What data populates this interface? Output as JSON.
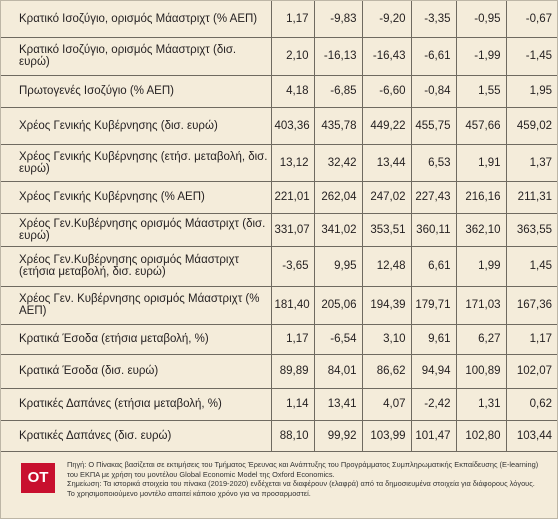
{
  "table": {
    "rows": [
      [
        "Κρατικό Ισοζύγιο, ορισμός Μάαστριχτ (% ΑΕΠ)",
        "1,17",
        "-9,83",
        "-9,20",
        "-3,35",
        "-0,95",
        "-0,67"
      ],
      [
        "Κρατικό Ισοζύγιο, ορισμός Μάαστριχτ (δισ. ευρώ)",
        "2,10",
        "-16,13",
        "-16,43",
        "-6,61",
        "-1,99",
        "-1,45"
      ],
      [
        "Πρωτογενές Ισοζύγιο (% ΑΕΠ)",
        "4,18",
        "-6,85",
        "-6,60",
        "-0,84",
        "1,55",
        "1,95"
      ],
      [
        "Χρέος Γενικής Κυβέρνησης (δισ. ευρώ)",
        "403,36",
        "435,78",
        "449,22",
        "455,75",
        "457,66",
        "459,02"
      ],
      [
        "Χρέος Γενικής Κυβέρνησης (ετήσ. μεταβολή, δισ. ευρώ)",
        "13,12",
        "32,42",
        "13,44",
        "6,53",
        "1,91",
        "1,37"
      ],
      [
        "Χρέος Γενικής Κυβέρνησης (% ΑΕΠ)",
        "221,01",
        "262,04",
        "247,02",
        "227,43",
        "216,16",
        "211,31"
      ],
      [
        "Χρέος Γεν.Κυβέρνησης ορισμός Μάαστριχτ (δισ. ευρώ)",
        "331,07",
        "341,02",
        "353,51",
        "360,11",
        "362,10",
        "363,55"
      ],
      [
        "Χρέος Γεν.Κυβέρνησης ορισμός Μάαστριχτ (ετήσια μεταβολή, δισ. ευρώ)",
        "-3,65",
        "9,95",
        "12,48",
        "6,61",
        "1,99",
        "1,45"
      ],
      [
        "Χρέος Γεν. Κυβέρνησης ορισμός Μάαστριχτ (% ΑΕΠ)",
        "181,40",
        "205,06",
        "194,39",
        "179,71",
        "171,03",
        "167,36"
      ],
      [
        "Κρατικά Έσοδα (ετήσια μεταβολή, %)",
        "1,17",
        "-6,54",
        "3,10",
        "9,61",
        "6,27",
        "1,17"
      ],
      [
        "Κρατικά Έσοδα (δισ. ευρώ)",
        "89,89",
        "84,01",
        "86,62",
        "94,94",
        "100,89",
        "102,07"
      ],
      [
        "Κρατικές Δαπάνες (ετήσια μεταβολή, %)",
        "1,14",
        "13,41",
        "4,07",
        "-2,42",
        "1,31",
        "0,62"
      ],
      [
        "Κρατικές Δαπάνες (δισ. ευρώ)",
        "88,10",
        "99,92",
        "103,99",
        "101,47",
        "102,80",
        "103,44"
      ]
    ]
  },
  "footer": {
    "logo": "OT",
    "source": "Πηγή: Ο Πίνακας βασίζεται σε εκτιμήσεις του Τμήματος Έρευνας και Ανάπτυξης του Προγράμματος Συμπληρωματικής Εκπαίδευσης (E-learning) του ΕΚΠΑ με χρήση του μοντέλου Global Economic Model της Oxford Economics.",
    "note": "Σημείωση: Τα ιστορικά στοιχεία του πίνακα (2019-2020) ενδέχεται να διαφέρουν (ελαφρά) από τα δημοσιευμένα στοιχεία για διάφορους λόγους. Το χρησιμοποιούμενο μοντέλο απαιτεί κάποιο χρόνο για να προσαρμοστεί."
  }
}
